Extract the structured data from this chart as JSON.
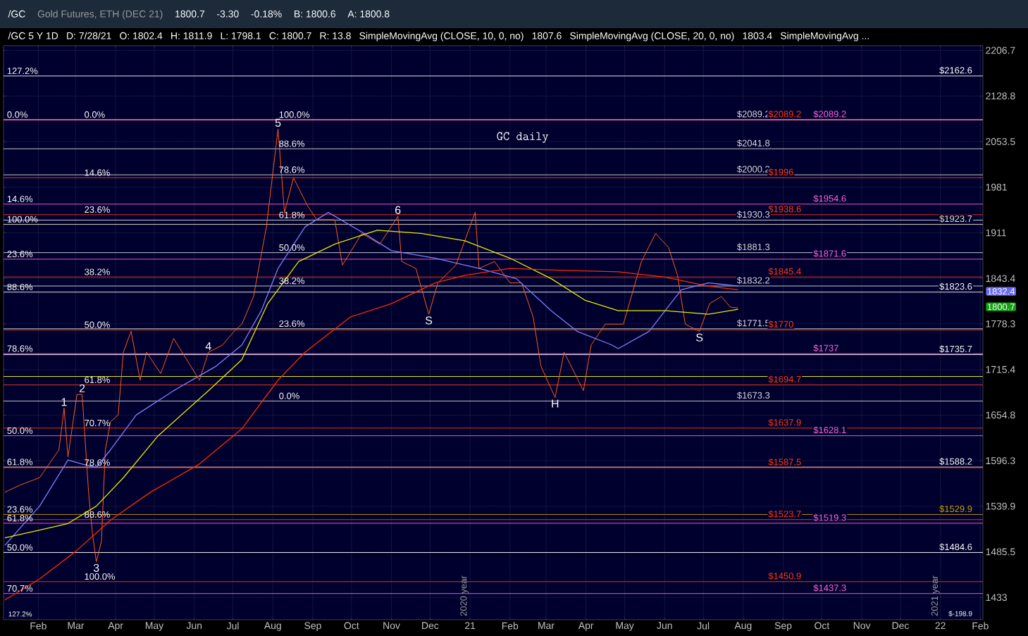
{
  "chart_data": {
    "type": "line",
    "title": "Gold Futures, ETH (DEC 21)",
    "log": "y",
    "grid": true,
    "marker": "none",
    "line_style": "solid",
    "xlim": [
      "2020-01-05",
      "2022-02-03"
    ],
    "ylim": [
      1408,
      2215
    ],
    "xticks": [
      {
        "value": "2020-02-01",
        "label": "Feb"
      },
      {
        "value": "2020-03-01",
        "label": "Mar"
      },
      {
        "value": "2020-04-01",
        "label": "Apr"
      },
      {
        "value": "2020-05-01",
        "label": "May"
      },
      {
        "value": "2020-06-01",
        "label": "Jun"
      },
      {
        "value": "2020-07-01",
        "label": "Jul"
      },
      {
        "value": "2020-08-01",
        "label": "Aug"
      },
      {
        "value": "2020-09-01",
        "label": "Sep"
      },
      {
        "value": "2020-10-01",
        "label": "Oct"
      },
      {
        "value": "2020-11-01",
        "label": "Nov"
      },
      {
        "value": "2020-12-01",
        "label": "Dec"
      },
      {
        "value": "2021-01-01",
        "label": "21"
      },
      {
        "value": "2021-02-01",
        "label": "Feb"
      },
      {
        "value": "2021-03-01",
        "label": "Mar"
      },
      {
        "value": "2021-04-01",
        "label": "Apr"
      },
      {
        "value": "2021-05-01",
        "label": "May"
      },
      {
        "value": "2021-06-01",
        "label": "Jun"
      },
      {
        "value": "2021-07-01",
        "label": "Jul"
      },
      {
        "value": "2021-08-01",
        "label": "Aug"
      },
      {
        "value": "2021-09-01",
        "label": "Sep"
      },
      {
        "value": "2021-10-01",
        "label": "Oct"
      },
      {
        "value": "2021-11-01",
        "label": "Nov"
      },
      {
        "value": "2021-12-01",
        "label": "Dec"
      },
      {
        "value": "2022-01-01",
        "label": "22"
      },
      {
        "value": "2022-02-01",
        "label": "Feb"
      }
    ],
    "yticks": [
      1433,
      1485.5,
      1539.9,
      1596.3,
      1654.8,
      1715.4,
      1778.3,
      1843.4,
      1911,
      1981,
      2053.5,
      2128.8,
      2206.7
    ],
    "series": [
      {
        "color": "#ff5a1f",
        "x": [
          "2020-01-06",
          "2020-01-18",
          "2020-02-02",
          "2020-02-17",
          "2020-02-21",
          "2020-02-24",
          "2020-03-02",
          "2020-03-06",
          "2020-03-11",
          "2020-03-14",
          "2020-03-17",
          "2020-03-21",
          "2020-03-24",
          "2020-03-28",
          "2020-04-03",
          "2020-04-07",
          "2020-04-13",
          "2020-04-20",
          "2020-04-25",
          "2020-05-06",
          "2020-05-16",
          "2020-06-05",
          "2020-06-12",
          "2020-06-23",
          "2020-07-02",
          "2020-07-08",
          "2020-07-17",
          "2020-07-27",
          "2020-08-05",
          "2020-08-10",
          "2020-08-17",
          "2020-08-28",
          "2020-09-04",
          "2020-09-18",
          "2020-09-24",
          "2020-10-09",
          "2020-10-23",
          "2020-11-06",
          "2020-11-09",
          "2020-11-20",
          "2020-11-30",
          "2020-12-07",
          "2020-12-21",
          "2021-01-05",
          "2021-01-08",
          "2021-01-20",
          "2021-02-01",
          "2021-02-10",
          "2021-02-19",
          "2021-02-25",
          "2021-03-08",
          "2021-03-15",
          "2021-03-30",
          "2021-04-05",
          "2021-04-16",
          "2021-04-30",
          "2021-05-14",
          "2021-05-25",
          "2021-06-04",
          "2021-06-11",
          "2021-06-17",
          "2021-06-28",
          "2021-07-06",
          "2021-07-15",
          "2021-07-22",
          "2021-07-28"
        ],
        "values": [
          1557,
          1566,
          1575,
          1610,
          1664,
          1601,
          1682,
          1682,
          1557,
          1507,
          1474,
          1498,
          1610,
          1646,
          1655,
          1739,
          1768,
          1701,
          1739,
          1710,
          1758,
          1701,
          1739,
          1749,
          1768,
          1778,
          1817,
          1920,
          2074,
          1942,
          1996,
          1952,
          1931,
          1931,
          1863,
          1910,
          1894,
          1936,
          1868,
          1858,
          1792,
          1837,
          1863,
          1942,
          1858,
          1868,
          1837,
          1837,
          1788,
          1720,
          1678,
          1739,
          1687,
          1749,
          1778,
          1778,
          1868,
          1910,
          1889,
          1848,
          1778,
          1768,
          1807,
          1817,
          1802,
          1800.7
        ]
      },
      {
        "color": "#7f7fff",
        "x": [
          "2020-01-06",
          "2020-02-02",
          "2020-02-24",
          "2020-03-06",
          "2020-03-17",
          "2020-03-28",
          "2020-04-17",
          "2020-05-16",
          "2020-06-18",
          "2020-07-08",
          "2020-07-23",
          "2020-08-05",
          "2020-08-26",
          "2020-09-13",
          "2020-10-11",
          "2020-11-01",
          "2020-12-05",
          "2021-01-08",
          "2021-02-06",
          "2021-03-05",
          "2021-03-25",
          "2021-04-21",
          "2021-04-26",
          "2021-05-20",
          "2021-06-14",
          "2021-07-05",
          "2021-07-28"
        ],
        "values": [
          1493,
          1540,
          1597,
          1592,
          1588,
          1610,
          1655,
          1687,
          1720,
          1749,
          1797,
          1858,
          1920,
          1942,
          1910,
          1884,
          1873,
          1858,
          1843,
          1797,
          1768,
          1749,
          1744,
          1768,
          1827,
          1837,
          1832.4
        ]
      },
      {
        "color": "#e8e800",
        "x": [
          "2020-01-06",
          "2020-02-02",
          "2020-02-24",
          "2020-03-17",
          "2020-04-07",
          "2020-05-04",
          "2020-06-12",
          "2020-07-08",
          "2020-07-28",
          "2020-08-21",
          "2020-09-18",
          "2020-10-21",
          "2020-11-24",
          "2020-12-28",
          "2021-02-01",
          "2021-03-05",
          "2021-03-31",
          "2021-04-26",
          "2021-06-02",
          "2021-07-05",
          "2021-07-28"
        ],
        "values": [
          1502,
          1511,
          1519,
          1540,
          1575,
          1628,
          1687,
          1729,
          1807,
          1868,
          1894,
          1915,
          1910,
          1899,
          1873,
          1843,
          1812,
          1797,
          1797,
          1792,
          1799
        ]
      },
      {
        "color": "#ff2a00",
        "x": [
          "2020-01-06",
          "2020-02-02",
          "2020-03-01",
          "2020-03-28",
          "2020-04-28",
          "2020-06-05",
          "2020-07-08",
          "2020-08-05",
          "2020-08-26",
          "2020-09-30",
          "2020-11-01",
          "2020-12-05",
          "2020-12-28",
          "2021-02-01",
          "2021-03-15",
          "2021-04-26",
          "2021-06-02",
          "2021-07-05",
          "2021-07-28"
        ],
        "values": [
          1430,
          1454,
          1486,
          1523,
          1557,
          1592,
          1637,
          1701,
          1739,
          1788,
          1807,
          1837,
          1848,
          1858,
          1855,
          1853,
          1845,
          1832,
          1827
        ]
      }
    ],
    "ref_lines": [
      {
        "axis": "y",
        "value": 2162.6,
        "label": "$2162.6",
        "color": "#ffffff"
      },
      {
        "axis": "y",
        "value": 2089.2,
        "label": "$2089.2",
        "color": "#dcdcdc"
      },
      {
        "axis": "y",
        "value": 2089.2,
        "label": "$2089.2",
        "color": "#ff3a10"
      },
      {
        "axis": "y",
        "value": 2089.2,
        "label": "$2089.2",
        "color": "#ff66dd"
      },
      {
        "axis": "y",
        "value": 2041.8,
        "label": "$2041.8",
        "color": "#dcdcdc"
      },
      {
        "axis": "y",
        "value": 2000.2,
        "label": "$2000.2",
        "color": "#dcdcdc"
      },
      {
        "axis": "y",
        "value": 1996,
        "label": "$1996",
        "color": "#ff3a10"
      },
      {
        "axis": "y",
        "value": 1954.6,
        "label": "$1954.6",
        "color": "#ff66dd"
      },
      {
        "axis": "y",
        "value": 1938.6,
        "label": "$1938.6",
        "color": "#ff3a10"
      },
      {
        "axis": "y",
        "value": 1930.3,
        "label": "$1930.3",
        "color": "#dcdcdc"
      },
      {
        "axis": "y",
        "value": 1923.7,
        "label": "$1923.7",
        "color": "#f0e8c8"
      },
      {
        "axis": "y",
        "value": 1881.3,
        "label": "$1881.3",
        "color": "#dcdcdc"
      },
      {
        "axis": "y",
        "value": 1871.6,
        "label": "$1871.6",
        "color": "#ff66dd"
      },
      {
        "axis": "y",
        "value": 1845.4,
        "label": "$1845.4",
        "color": "#ff3a10"
      },
      {
        "axis": "y",
        "value": 1832.2,
        "label": "$1832.2",
        "color": "#dcdcdc"
      },
      {
        "axis": "y",
        "value": 1823.6,
        "label": "$1823.6",
        "color": "#ffffff"
      },
      {
        "axis": "y",
        "value": 1771.5,
        "label": "$1771.5",
        "color": "#dcdcdc"
      },
      {
        "axis": "y",
        "value": 1770,
        "label": "$1770",
        "color": "#ff3a10"
      },
      {
        "axis": "y",
        "value": 1737,
        "label": "$1737",
        "color": "#ff66dd"
      },
      {
        "axis": "y",
        "value": 1735.7,
        "label": "$1735.7",
        "color": "#ffffff"
      },
      {
        "axis": "y",
        "value": 1706,
        "color": "#ffff00"
      },
      {
        "axis": "y",
        "value": 1694.7,
        "label": "$1694.7",
        "color": "#ff3a10"
      },
      {
        "axis": "y",
        "value": 1673.3,
        "label": "$1673.3",
        "color": "#dcdcdc"
      },
      {
        "axis": "y",
        "value": 1637.9,
        "label": "$1637.9",
        "color": "#ff3a10"
      },
      {
        "axis": "y",
        "value": 1628.1,
        "label": "$1628.1",
        "color": "#ff66dd"
      },
      {
        "axis": "y",
        "value": 1588.2,
        "label": "$1588.2",
        "color": "#ffffff"
      },
      {
        "axis": "y",
        "value": 1587.5,
        "label": "$1587.5",
        "color": "#ff3a10"
      },
      {
        "axis": "y",
        "value": 1529.9,
        "label": "$1529.9",
        "color": "#c8a000"
      },
      {
        "axis": "y",
        "value": 1523.7,
        "label": "$1523.7",
        "color": "#ff3a10"
      },
      {
        "axis": "y",
        "value": 1519.3,
        "label": "$1519.3",
        "color": "#ff66dd"
      },
      {
        "axis": "y",
        "value": 1484.6,
        "label": "$1484.6",
        "color": "#ffffff"
      },
      {
        "axis": "y",
        "value": 1450.9,
        "label": "$1450.9",
        "color": "#ff3a10"
      },
      {
        "axis": "y",
        "value": 1437.3,
        "label": "$1437.3",
        "color": "#ff66dd"
      }
    ],
    "annotations": [
      "/GC",
      "1800.7",
      "-3.30",
      "-0.18%",
      "B: 1800.6",
      "A: 1800.8",
      "/GC 5 Y 1D",
      "D: 7/28/21",
      "O: 1802.4",
      "H: 1811.9",
      "L: 1798.1",
      "C: 1800.7",
      "R: 13.8",
      "SimpleMovingAvg (CLOSE, 10, 0, no)",
      "1807.6",
      "SimpleMovingAvg (CLOSE, 20, 0, no)",
      "1803.4",
      "SimpleMovingAvg ...",
      {
        "text": "0.0%",
        "x": "2020-01-07",
        "y": 2089.2
      },
      {
        "text": "14.6%",
        "x": "2020-01-07",
        "y": 1954.6
      },
      {
        "text": "23.6%",
        "x": "2020-01-07",
        "y": 1871.6
      },
      {
        "text": "78.6%",
        "x": "2020-01-07",
        "y": 1737
      },
      {
        "text": "50.0%",
        "x": "2020-01-07",
        "y": 1628.1
      },
      {
        "text": "61.8%",
        "x": "2020-01-07",
        "y": 1519.3
      },
      {
        "text": "70.7%",
        "x": "2020-01-07",
        "y": 1437.3
      },
      {
        "text": "127.2%",
        "x": "2020-01-07",
        "y": 2162.6
      },
      {
        "text": "100.0%",
        "x": "2020-01-07",
        "y": 1923.7
      },
      {
        "text": "88.6%",
        "x": "2020-01-07",
        "y": 1823.6
      },
      {
        "text": "61.8%",
        "x": "2020-01-07",
        "y": 1588.2
      },
      {
        "text": "50.0%",
        "x": "2020-01-07",
        "y": 1484.6
      },
      {
        "text": "23.6%",
        "x": "2020-01-07",
        "y": 1529.9
      },
      {
        "text": "0.0%",
        "x": "2020-03-07",
        "y": 2089.2
      },
      {
        "text": "14.6%",
        "x": "2020-03-07",
        "y": 1996
      },
      {
        "text": "23.6%",
        "x": "2020-03-07",
        "y": 1938.6
      },
      {
        "text": "38.2%",
        "x": "2020-03-07",
        "y": 1845.4
      },
      {
        "text": "50.0%",
        "x": "2020-03-07",
        "y": 1770
      },
      {
        "text": "61.8%",
        "x": "2020-03-07",
        "y": 1694.7
      },
      {
        "text": "70.7%",
        "x": "2020-03-07",
        "y": 1637.9
      },
      {
        "text": "78.6%",
        "x": "2020-03-07",
        "y": 1587.5
      },
      {
        "text": "88.6%",
        "x": "2020-03-07",
        "y": 1523.7
      },
      {
        "text": "100.0%",
        "x": "2020-03-07",
        "y": 1450.9
      },
      {
        "text": "100.0%",
        "x": "2020-08-05",
        "y": 2089.2
      },
      {
        "text": "88.6%",
        "x": "2020-08-05",
        "y": 2041.8
      },
      {
        "text": "78.6%",
        "x": "2020-08-05",
        "y": 2000.2
      },
      {
        "text": "61.8%",
        "x": "2020-08-05",
        "y": 1930.3
      },
      {
        "text": "50.0%",
        "x": "2020-08-05",
        "y": 1881.3
      },
      {
        "text": "38.2%",
        "x": "2020-08-05",
        "y": 1832.2
      },
      {
        "text": "23.6%",
        "x": "2020-08-05",
        "y": 1771.5
      },
      {
        "text": "0.0%",
        "x": "2020-08-05",
        "y": 1673.3
      },
      {
        "text": "1",
        "x": "2020-02-21",
        "y": 1664
      },
      {
        "text": "2",
        "x": "2020-03-06",
        "y": 1682
      },
      {
        "text": "3",
        "x": "2020-03-17",
        "y": 1474
      },
      {
        "text": "4",
        "x": "2020-06-12",
        "y": 1739
      },
      {
        "text": "5",
        "x": "2020-08-05",
        "y": 2074
      },
      {
        "text": "6",
        "x": "2020-11-06",
        "y": 1936
      },
      {
        "text": "S",
        "x": "2020-11-30",
        "y": 1792
      },
      {
        "text": "H",
        "x": "2021-03-08",
        "y": 1678
      },
      {
        "text": "S",
        "x": "2021-06-28",
        "y": 1768
      },
      "GC daily",
      "127.2%",
      "$-198.9",
      "1832.4",
      "1800.7",
      "2020 year",
      "2021 year"
    ]
  }
}
